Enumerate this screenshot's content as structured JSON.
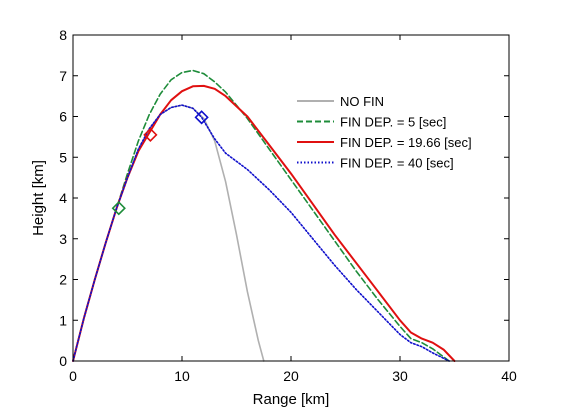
{
  "chart_data": {
    "type": "line",
    "xlabel": "Range [km]",
    "ylabel": "Height [km]",
    "xlim": [
      0,
      40
    ],
    "ylim": [
      0,
      8
    ],
    "xticks": [
      0,
      10,
      20,
      30,
      40
    ],
    "yticks": [
      0,
      1,
      2,
      3,
      4,
      5,
      6,
      7,
      8
    ],
    "grid": false,
    "legend_position": "top-right",
    "series": [
      {
        "name": "NO FIN",
        "color": "#b0b0b0",
        "style": "solid",
        "x": [
          0,
          1,
          2,
          3,
          4,
          5,
          6,
          7,
          8,
          9,
          10,
          11,
          12,
          13,
          14,
          15,
          16,
          17,
          17.5
        ],
        "y": [
          0,
          1.05,
          2.0,
          2.9,
          3.75,
          4.5,
          5.2,
          5.7,
          6.05,
          6.22,
          6.28,
          6.2,
          5.95,
          5.4,
          4.4,
          3.1,
          1.7,
          0.5,
          0
        ]
      },
      {
        "name": "FIN DEP. = 5 [sec]",
        "color": "#1e8c3a",
        "style": "dashed",
        "x": [
          0,
          1,
          2,
          3,
          4,
          5,
          6,
          7,
          8,
          9,
          10,
          11,
          12,
          13,
          14,
          16,
          18,
          20,
          22,
          24,
          26,
          28,
          30,
          31,
          32,
          33,
          34.5
        ],
        "y": [
          0,
          1.05,
          2.0,
          2.9,
          3.75,
          4.6,
          5.4,
          6.05,
          6.55,
          6.9,
          7.08,
          7.13,
          7.05,
          6.85,
          6.6,
          5.95,
          5.2,
          4.45,
          3.7,
          2.95,
          2.2,
          1.5,
          0.85,
          0.55,
          0.45,
          0.3,
          0
        ]
      },
      {
        "name": "FIN DEP. = 19.66 [sec]",
        "color": "#e01010",
        "style": "solid",
        "x": [
          0,
          1,
          2,
          3,
          4,
          5,
          6,
          7,
          8,
          9,
          10,
          11,
          12,
          13,
          14,
          16,
          18,
          20,
          22,
          24,
          26,
          28,
          30,
          31,
          32,
          33,
          34,
          35
        ],
        "y": [
          0,
          1.05,
          2.0,
          2.9,
          3.75,
          4.5,
          5.15,
          5.6,
          6.05,
          6.4,
          6.62,
          6.74,
          6.75,
          6.68,
          6.5,
          6.0,
          5.3,
          4.6,
          3.85,
          3.1,
          2.4,
          1.7,
          1.0,
          0.7,
          0.55,
          0.45,
          0.28,
          0
        ]
      },
      {
        "name": "FIN DEP. = 40 [sec]",
        "color": "#1010cc",
        "style": "dotted",
        "x": [
          0,
          1,
          2,
          3,
          4,
          5,
          6,
          7,
          8,
          9,
          10,
          11,
          11.8,
          13,
          14,
          16,
          18,
          20,
          22,
          24,
          26,
          28,
          30,
          31,
          32,
          33,
          34.5
        ],
        "y": [
          0,
          1.05,
          2.0,
          2.9,
          3.75,
          4.5,
          5.2,
          5.7,
          6.05,
          6.22,
          6.28,
          6.2,
          5.98,
          5.45,
          5.1,
          4.7,
          4.2,
          3.65,
          3.0,
          2.35,
          1.75,
          1.2,
          0.65,
          0.45,
          0.35,
          0.2,
          0
        ]
      }
    ],
    "markers": [
      {
        "x": 4.2,
        "y": 3.75,
        "color": "#1e8c3a",
        "shape": "diamond"
      },
      {
        "x": 7.1,
        "y": 5.55,
        "color": "#e01010",
        "shape": "diamond"
      },
      {
        "x": 11.8,
        "y": 5.98,
        "color": "#1010cc",
        "shape": "diamond"
      }
    ]
  }
}
